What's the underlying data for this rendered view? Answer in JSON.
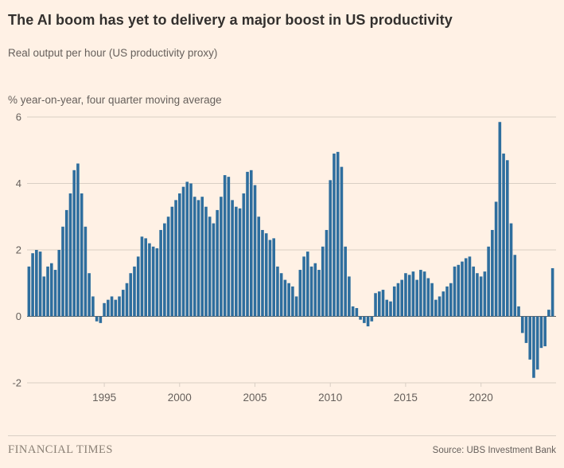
{
  "header": {
    "title": "The AI boom has yet to delivery a major boost in US productivity",
    "subtitle": "Real output per hour (US productivity proxy)"
  },
  "chart": {
    "unit_label": "% year-on-year, four quarter moving average"
  },
  "footer": {
    "brand": "FINANCIAL TIMES",
    "source": "Source: UBS Investment Bank"
  },
  "colors": {
    "background": "#FFF1E5",
    "title_text": "#33302E",
    "muted_text": "#66605C",
    "gridline": "#D9CFC4",
    "zero_line": "#66605C",
    "bar": "#2E6E9E"
  },
  "chart_data": {
    "type": "bar",
    "title": "Real output per hour (US productivity proxy)",
    "ylabel": "% year-on-year, four quarter moving average",
    "start_year": 1990,
    "frequency": "quarterly",
    "ylim": [
      -2,
      6
    ],
    "gridlines": [
      -2,
      0,
      2,
      4,
      6
    ],
    "x_ticks": [
      1995,
      2000,
      2005,
      2010,
      2015,
      2020
    ],
    "values": [
      1.5,
      1.9,
      2.0,
      1.95,
      1.2,
      1.5,
      1.6,
      1.4,
      2.0,
      2.7,
      3.2,
      3.7,
      4.4,
      4.6,
      3.7,
      2.7,
      1.3,
      0.6,
      -0.15,
      -0.2,
      0.4,
      0.5,
      0.6,
      0.5,
      0.6,
      0.8,
      1.0,
      1.3,
      1.5,
      1.8,
      2.4,
      2.35,
      2.2,
      2.1,
      2.05,
      2.6,
      2.8,
      3.0,
      3.3,
      3.5,
      3.7,
      3.9,
      4.05,
      4.0,
      3.6,
      3.5,
      3.6,
      3.3,
      3.0,
      2.8,
      3.2,
      3.6,
      4.25,
      4.2,
      3.5,
      3.3,
      3.25,
      3.7,
      4.35,
      4.4,
      3.95,
      3.0,
      2.6,
      2.5,
      2.3,
      2.35,
      1.5,
      1.3,
      1.1,
      1.0,
      0.9,
      0.6,
      1.4,
      1.8,
      1.95,
      1.5,
      1.6,
      1.4,
      2.1,
      2.6,
      4.1,
      4.9,
      4.95,
      4.5,
      2.1,
      1.2,
      0.3,
      0.25,
      -0.1,
      -0.2,
      -0.3,
      -0.15,
      0.7,
      0.75,
      0.8,
      0.5,
      0.45,
      0.9,
      1.0,
      1.1,
      1.3,
      1.25,
      1.35,
      1.1,
      1.4,
      1.35,
      1.15,
      1.0,
      0.5,
      0.6,
      0.75,
      0.9,
      1.0,
      1.5,
      1.55,
      1.65,
      1.75,
      1.8,
      1.5,
      1.3,
      1.2,
      1.35,
      2.1,
      2.6,
      3.45,
      5.85,
      4.9,
      4.7,
      2.8,
      1.85,
      0.3,
      -0.5,
      -0.8,
      -1.3,
      -1.85,
      -1.6,
      -0.95,
      -0.9,
      0.2,
      1.45
    ]
  }
}
